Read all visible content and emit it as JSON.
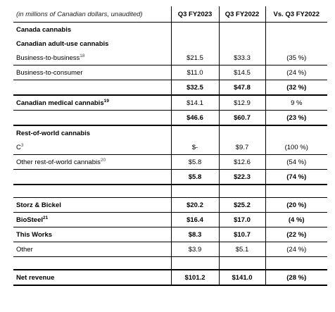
{
  "header": {
    "label": "(in millions of Canadian dollars, unaudited)",
    "col1": "Q3 FY2023",
    "col2": "Q3 FY2022",
    "col3": "Vs. Q3 FY2022"
  },
  "canada_cannabis": "Canada cannabis",
  "canadian_adult_use": "Canadian adult-use cannabis",
  "b2b": {
    "label": "Business-to-business",
    "sup": "18",
    "fy23": "$21.5",
    "fy22": "$33.3",
    "change": "(35 %)"
  },
  "b2c": {
    "label": "Business-to-consumer",
    "fy23": "$11.0",
    "fy22": "$14.5",
    "change": "(24 %)"
  },
  "adult_use_total": {
    "fy23": "$32.5",
    "fy22": "$47.8",
    "change": "(32 %)"
  },
  "medical": {
    "label": "Canadian medical cannabis",
    "sup": "19",
    "fy23": "$14.1",
    "fy22": "$12.9",
    "change": "9 %"
  },
  "canada_total": {
    "fy23": "$46.6",
    "fy22": "$60.7",
    "change": "(23 %)"
  },
  "row_cannabis": "Rest-of-world cannabis",
  "c3": {
    "label": "C",
    "sup": "3",
    "fy23": "$-",
    "fy22": "$9.7",
    "change": "(100 %)"
  },
  "other_row": {
    "label": "Other rest-of-world cannabis",
    "sup": "20",
    "fy23": "$5.8",
    "fy22": "$12.6",
    "change": "(54 %)"
  },
  "row_total": {
    "fy23": "$5.8",
    "fy22": "$22.3",
    "change": "(74 %)"
  },
  "storz": {
    "label": "Storz & Bickel",
    "fy23": "$20.2",
    "fy22": "$25.2",
    "change": "(20 %)"
  },
  "biosteel": {
    "label": "BioSteel",
    "sup": "21",
    "fy23": "$16.4",
    "fy22": "$17.0",
    "change": "(4 %)"
  },
  "thisworks": {
    "label": "This Works",
    "fy23": "$8.3",
    "fy22": "$10.7",
    "change": "(22 %)"
  },
  "other": {
    "label": "Other",
    "fy23": "$3.9",
    "fy22": "$5.1",
    "change": "(24 %)"
  },
  "net_revenue": {
    "label": "Net revenue",
    "fy23": "$101.2",
    "fy22": "$141.0",
    "change": "(28 %)"
  }
}
